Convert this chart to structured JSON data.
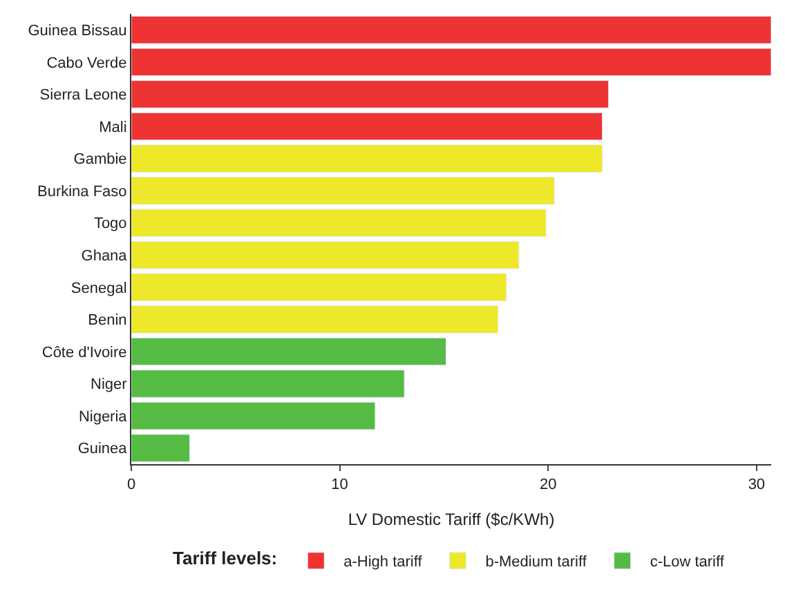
{
  "chart_data": {
    "type": "bar",
    "orientation": "horizontal",
    "xlabel": "LV Domestic Tariff ($c/KWh)",
    "legend_title": "Tariff levels:",
    "legend": "bottom",
    "grid": false,
    "categories": [
      "Guinea Bissau",
      "Cabo Verde",
      "Sierra Leone",
      "Mali",
      "Gambie",
      "Burkina Faso",
      "Togo",
      "Ghana",
      "Senegal",
      "Benin",
      "Côte d'Ivoire",
      "Niger",
      "Nigeria",
      "Guinea"
    ],
    "series": [
      {
        "name": "a-High tariff",
        "color": "#ee3333",
        "values": [
          30.7,
          30.7,
          22.9,
          22.6,
          null,
          null,
          null,
          null,
          null,
          null,
          null,
          null,
          null,
          null
        ]
      },
      {
        "name": "b-Medium tariff",
        "color": "#eee82a",
        "values": [
          null,
          null,
          null,
          null,
          22.6,
          20.3,
          19.9,
          18.6,
          18.0,
          17.6,
          null,
          null,
          null,
          null
        ]
      },
      {
        "name": "c-Low tariff",
        "color": "#55bb44",
        "values": [
          null,
          null,
          null,
          null,
          null,
          null,
          null,
          null,
          null,
          null,
          15.1,
          13.1,
          11.7,
          2.8
        ]
      }
    ],
    "xlim": [
      0,
      30.7
    ],
    "xticks": [
      0,
      10,
      20,
      30
    ]
  }
}
